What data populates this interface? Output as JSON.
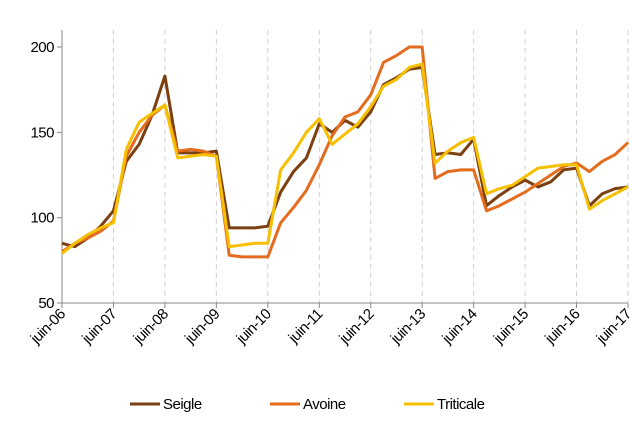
{
  "chart_data": {
    "type": "line",
    "categories": [
      "juin-06",
      null,
      null,
      null,
      "juin-07",
      null,
      null,
      null,
      "juin-08",
      null,
      null,
      null,
      "juin-09",
      null,
      null,
      null,
      "juin-10",
      null,
      null,
      null,
      "juin-11",
      null,
      null,
      null,
      "juin-12",
      null,
      null,
      null,
      "juin-13",
      null,
      null,
      null,
      "juin-14",
      null,
      null,
      null,
      "juin-15",
      null,
      null,
      null,
      "juin-16",
      null,
      null,
      null,
      "juin-17"
    ],
    "series": [
      {
        "name": "Seigle",
        "color": "#7b3f10",
        "values": [
          85,
          83,
          88,
          95,
          104,
          133,
          143,
          160,
          183,
          138,
          138,
          138,
          139,
          94,
          94,
          94,
          95,
          115,
          127,
          135,
          155,
          150,
          157,
          153,
          162,
          178,
          182,
          187,
          188,
          137,
          138,
          137,
          146,
          107,
          113,
          118,
          122,
          118,
          121,
          128,
          129,
          107,
          114,
          117,
          118
        ]
      },
      {
        "name": "Avoine",
        "color": "#e36c1e",
        "values": [
          80,
          85,
          88,
          92,
          98,
          136,
          150,
          160,
          166,
          139,
          140,
          139,
          136,
          78,
          77,
          77,
          77,
          97,
          106,
          116,
          131,
          148,
          159,
          162,
          172,
          191,
          195,
          200,
          200,
          123,
          127,
          128,
          128,
          104,
          107,
          111,
          115,
          120,
          125,
          130,
          132,
          127,
          133,
          137,
          144
        ]
      },
      {
        "name": "Triticale",
        "color": "#f6c000",
        "values": [
          79,
          85,
          90,
          94,
          97,
          140,
          156,
          161,
          166,
          135,
          136,
          137,
          136,
          83,
          84,
          85,
          85,
          128,
          138,
          150,
          158,
          143,
          149,
          155,
          165,
          177,
          181,
          188,
          190,
          132,
          139,
          144,
          147,
          114,
          117,
          119,
          124,
          129,
          130,
          131,
          131,
          105,
          110,
          114,
          118
        ]
      }
    ],
    "ylim": [
      50,
      210
    ],
    "yticks": [
      50,
      100,
      150,
      200
    ],
    "grid": true,
    "legend": "bottom"
  }
}
